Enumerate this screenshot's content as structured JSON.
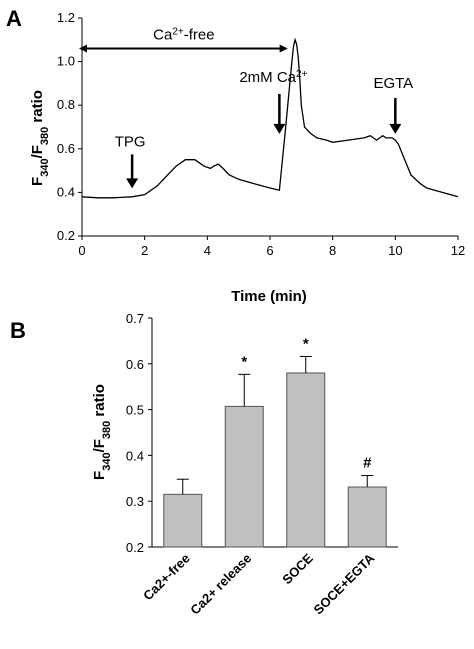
{
  "chart_data": [
    {
      "type": "line",
      "panel_label": "A",
      "xlabel": "Time (min)",
      "ylabel": {
        "main": "F",
        "sub1": "340",
        "sep": "/F",
        "sub2": "380",
        "tail": " ratio"
      },
      "xlim": [
        0,
        12
      ],
      "ylim": [
        0.2,
        1.2
      ],
      "xticks": [
        "0",
        "2",
        "4",
        "6",
        "8",
        "10",
        "12"
      ],
      "yticks": [
        "0.2",
        "0.4",
        "0.6",
        "0.8",
        "1.0",
        "1.2"
      ],
      "grid": false,
      "series": [
        {
          "x": [
            0,
            0.5,
            1.0,
            1.6,
            2.0,
            2.4,
            2.8,
            3.0,
            3.3,
            3.6,
            3.9,
            4.1,
            4.2,
            4.35,
            4.5,
            4.7,
            5.0,
            5.5,
            6.0,
            6.3,
            6.5,
            6.6,
            6.7,
            6.75,
            6.8,
            6.85,
            6.9,
            6.95,
            7.0,
            7.1,
            7.3,
            7.5,
            7.8,
            8.0,
            8.5,
            9.0,
            9.2,
            9.3,
            9.4,
            9.5,
            9.6,
            9.7,
            9.8,
            9.9,
            10.0,
            10.1,
            10.3,
            10.5,
            10.8,
            11.0,
            11.5,
            12.0
          ],
          "y": [
            0.38,
            0.375,
            0.375,
            0.38,
            0.39,
            0.43,
            0.49,
            0.52,
            0.55,
            0.55,
            0.52,
            0.51,
            0.52,
            0.53,
            0.51,
            0.48,
            0.46,
            0.44,
            0.42,
            0.41,
            0.7,
            0.85,
            1.0,
            1.07,
            1.1,
            1.08,
            1.02,
            0.92,
            0.8,
            0.7,
            0.67,
            0.65,
            0.64,
            0.63,
            0.64,
            0.65,
            0.66,
            0.65,
            0.64,
            0.65,
            0.66,
            0.65,
            0.65,
            0.65,
            0.64,
            0.62,
            0.55,
            0.48,
            0.44,
            0.42,
            0.4,
            0.38
          ]
        }
      ],
      "annotations": [
        {
          "text": "TPG",
          "x": 1.6,
          "y_tip": 0.4
        },
        {
          "text_main": "2mM Ca",
          "text_sup": "2+",
          "x": 6.3,
          "y_tip": 0.65
        },
        {
          "text": "EGTA",
          "x": 10.0,
          "y_tip": 0.65
        },
        {
          "text_main": "Ca",
          "text_sup": "2+",
          "text_tail": "-free",
          "x_start": 0,
          "x_end": 6.5,
          "y": 1.06
        }
      ]
    },
    {
      "type": "bar",
      "panel_label": "B",
      "ylabel": {
        "main": "F",
        "sub1": "340",
        "sep": "/F",
        "sub2": "380",
        "tail": " ratio"
      },
      "ylim": [
        0.2,
        0.7
      ],
      "yticks": [
        "0.2",
        "0.3",
        "0.4",
        "0.5",
        "0.6",
        "0.7"
      ],
      "categories": [
        "Ca2+-free",
        "Ca2+ release",
        "SOCE",
        "SOCE+EGTA"
      ],
      "values": [
        0.315,
        0.507,
        0.58,
        0.331
      ],
      "errors": [
        0.033,
        0.07,
        0.036,
        0.025
      ],
      "significance": [
        "",
        "*",
        "*",
        "#"
      ],
      "bar_color": "#c0c0c0",
      "grid": false
    }
  ]
}
